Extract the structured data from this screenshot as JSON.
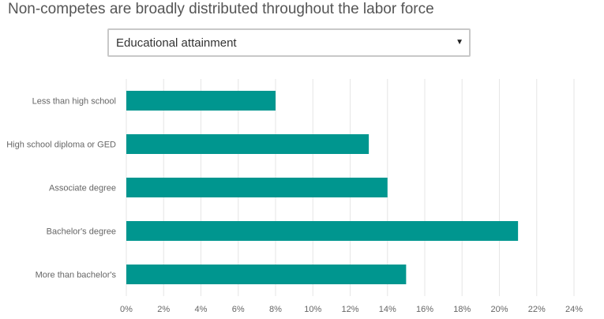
{
  "title": "Non-competes are broadly distributed throughout the labor force",
  "selector": {
    "selected": "Educational attainment",
    "arrow_icon": "triangle-down-icon"
  },
  "chart_data": {
    "type": "bar",
    "orientation": "horizontal",
    "categories": [
      "Less than high school",
      "High school diploma or GED",
      "Associate degree",
      "Bachelor's degree",
      "More than bachelor's"
    ],
    "values": [
      8,
      13,
      14,
      21,
      15
    ],
    "unit": "%",
    "xlim": [
      0,
      24
    ],
    "xticks": [
      0,
      2,
      4,
      6,
      8,
      10,
      12,
      14,
      16,
      18,
      20,
      22,
      24
    ],
    "xtick_labels": [
      "0%",
      "2%",
      "4%",
      "6%",
      "8%",
      "10%",
      "12%",
      "14%",
      "16%",
      "18%",
      "20%",
      "22%",
      "24%"
    ],
    "grid": true,
    "bar_color": "#00968f",
    "grid_color": "#e6e6e6"
  }
}
